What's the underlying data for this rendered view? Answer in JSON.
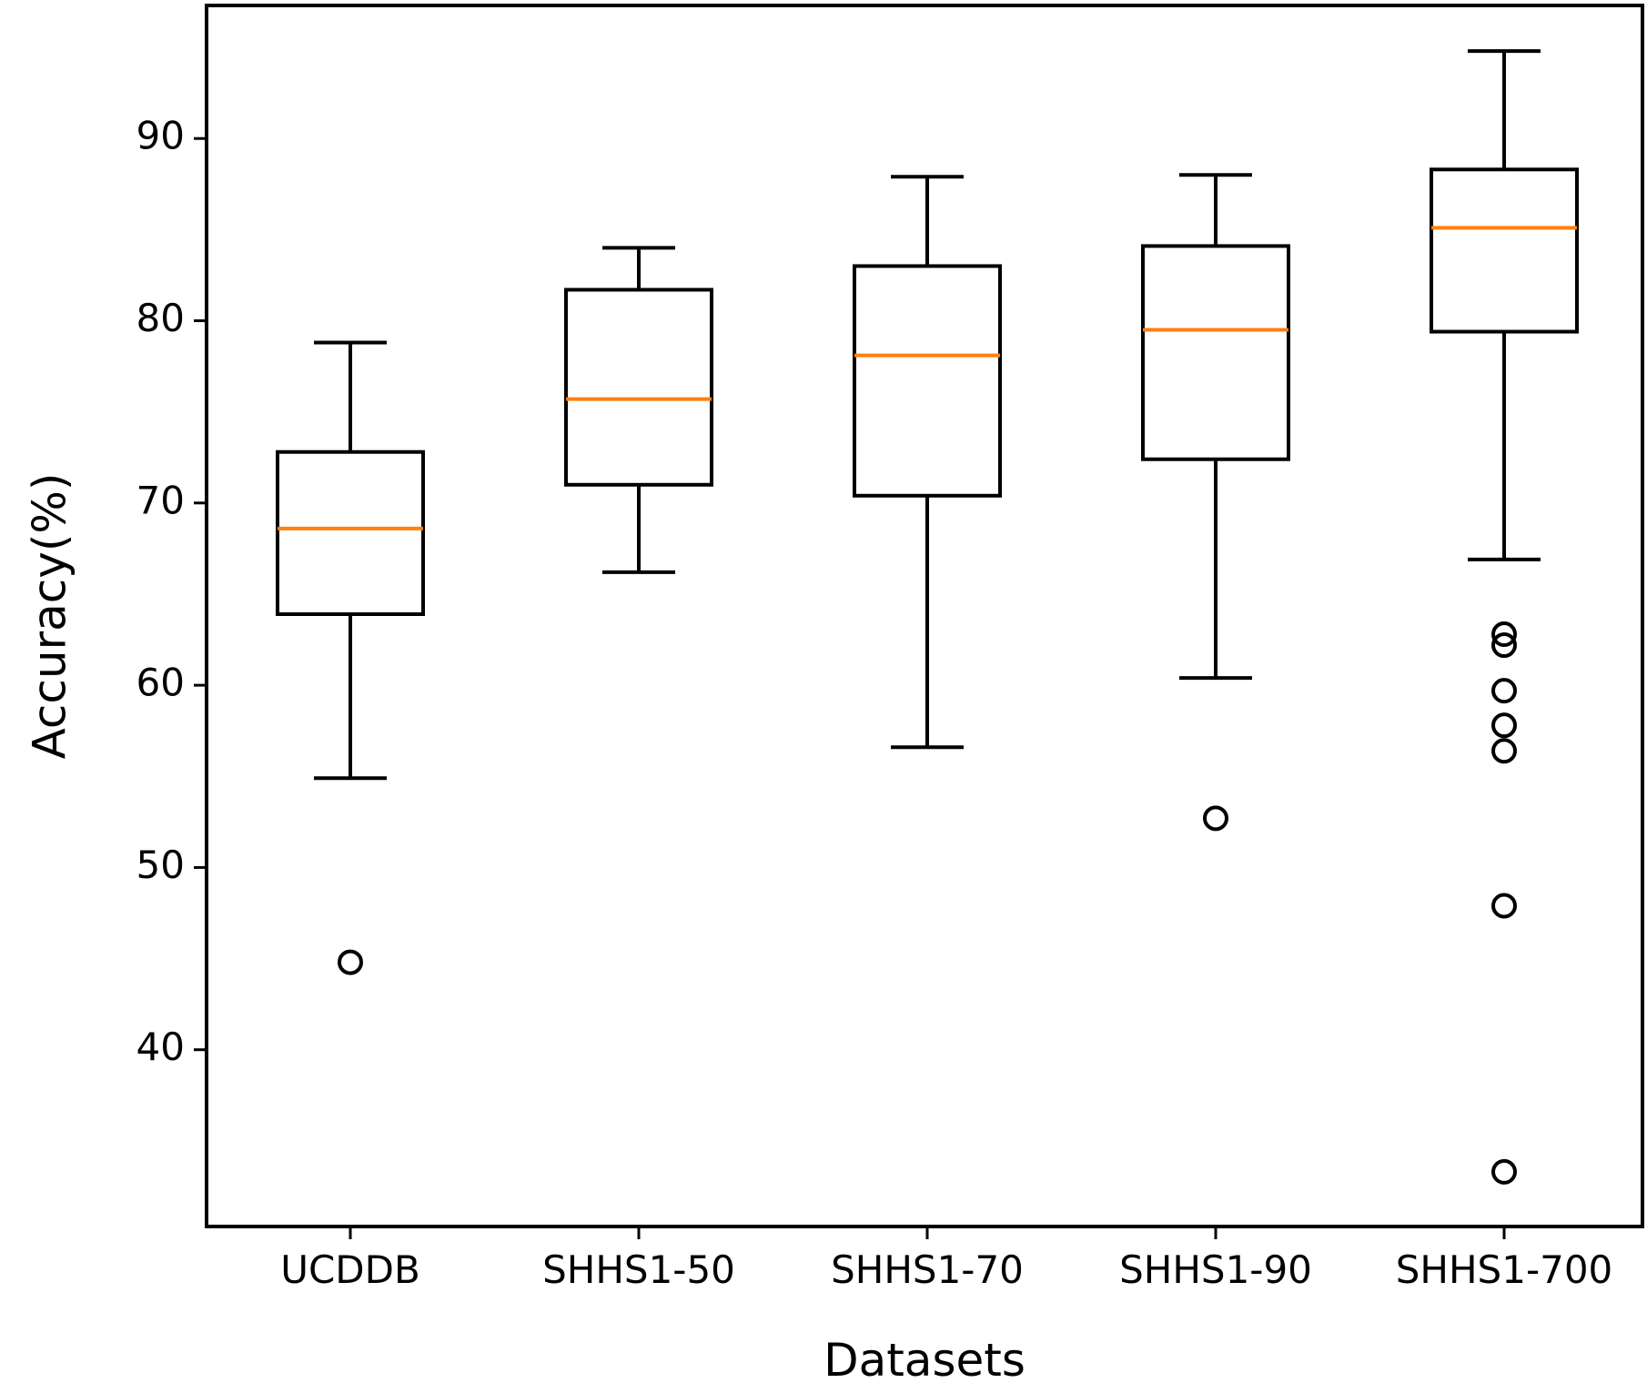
{
  "chart_data": {
    "type": "boxplot",
    "title": "",
    "xlabel": "Datasets",
    "ylabel": "Accuracy(%)",
    "ylim": [
      30.3,
      97.3
    ],
    "yticks": [
      40,
      50,
      60,
      70,
      80,
      90
    ],
    "categories": [
      "UCDDB",
      "SHHS1-50",
      "SHHS1-70",
      "SHHS1-90",
      "SHHS1-700"
    ],
    "boxes": [
      {
        "name": "UCDDB",
        "whisker_low": 54.9,
        "q1": 63.9,
        "median": 68.6,
        "q3": 72.8,
        "whisker_high": 78.8,
        "outliers": [
          44.8
        ]
      },
      {
        "name": "SHHS1-50",
        "whisker_low": 66.2,
        "q1": 71.0,
        "median": 75.7,
        "q3": 81.7,
        "whisker_high": 84.0,
        "outliers": []
      },
      {
        "name": "SHHS1-70",
        "whisker_low": 56.6,
        "q1": 70.4,
        "median": 78.1,
        "q3": 83.0,
        "whisker_high": 87.9,
        "outliers": []
      },
      {
        "name": "SHHS1-90",
        "whisker_low": 60.4,
        "q1": 72.4,
        "median": 79.5,
        "q3": 84.1,
        "whisker_high": 88.0,
        "outliers": [
          52.7
        ]
      },
      {
        "name": "SHHS1-700",
        "whisker_low": 66.9,
        "q1": 79.4,
        "median": 85.1,
        "q3": 88.3,
        "whisker_high": 94.8,
        "outliers": [
          62.8,
          62.2,
          59.7,
          57.8,
          56.4,
          47.9,
          33.3
        ]
      }
    ],
    "colors": {
      "box": "#000000",
      "median": "#ff7f0e",
      "background": "#ffffff"
    },
    "grid": false,
    "legend": "none"
  }
}
